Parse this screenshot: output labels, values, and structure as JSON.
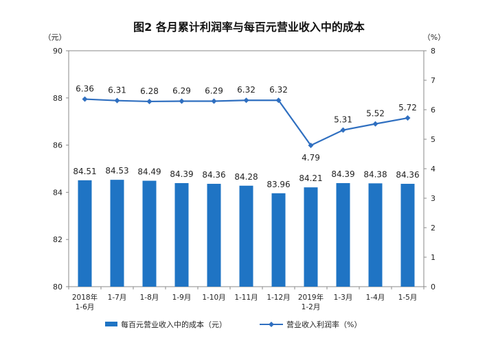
{
  "chart_data": {
    "type": "bar+line",
    "title": "图2 各月累计利润率与每百元营业收入中的成本",
    "left_unit": "（元）",
    "right_unit": "（%）",
    "categories": [
      [
        "2018年",
        "1-6月"
      ],
      [
        "1-7月"
      ],
      [
        "1-8月"
      ],
      [
        "1-9月"
      ],
      [
        "1-10月"
      ],
      [
        "1-11月"
      ],
      [
        "1-12月"
      ],
      [
        "2019年",
        "1-2月"
      ],
      [
        "1-3月"
      ],
      [
        "1-4月"
      ],
      [
        "1-5月"
      ]
    ],
    "ylim_left": [
      80,
      90
    ],
    "yticks_left": [
      "80",
      "82",
      "84",
      "86",
      "88",
      "90"
    ],
    "ylim_right": [
      0,
      8
    ],
    "yticks_right": [
      "0",
      "1",
      "2",
      "3",
      "4",
      "5",
      "6",
      "7",
      "8"
    ],
    "series": [
      {
        "name": "每百元营业收入中的成本（元）",
        "type": "bar",
        "axis": "left",
        "color": "#1f74c4",
        "values": [
          84.51,
          84.53,
          84.49,
          84.39,
          84.36,
          84.28,
          83.96,
          84.21,
          84.39,
          84.38,
          84.36
        ],
        "labels": [
          "84.51",
          "84.53",
          "84.49",
          "84.39",
          "84.36",
          "84.28",
          "83.96",
          "84.21",
          "84.39",
          "84.38",
          "84.36"
        ]
      },
      {
        "name": "营业收入利润率（%）",
        "type": "line",
        "axis": "right",
        "color": "#2f6fc0",
        "values": [
          6.36,
          6.31,
          6.28,
          6.29,
          6.29,
          6.32,
          6.32,
          4.79,
          5.31,
          5.52,
          5.72
        ],
        "labels": [
          "6.36",
          "6.31",
          "6.28",
          "6.29",
          "6.29",
          "6.32",
          "6.32",
          "4.79",
          "5.31",
          "5.52",
          "5.72"
        ]
      }
    ]
  }
}
